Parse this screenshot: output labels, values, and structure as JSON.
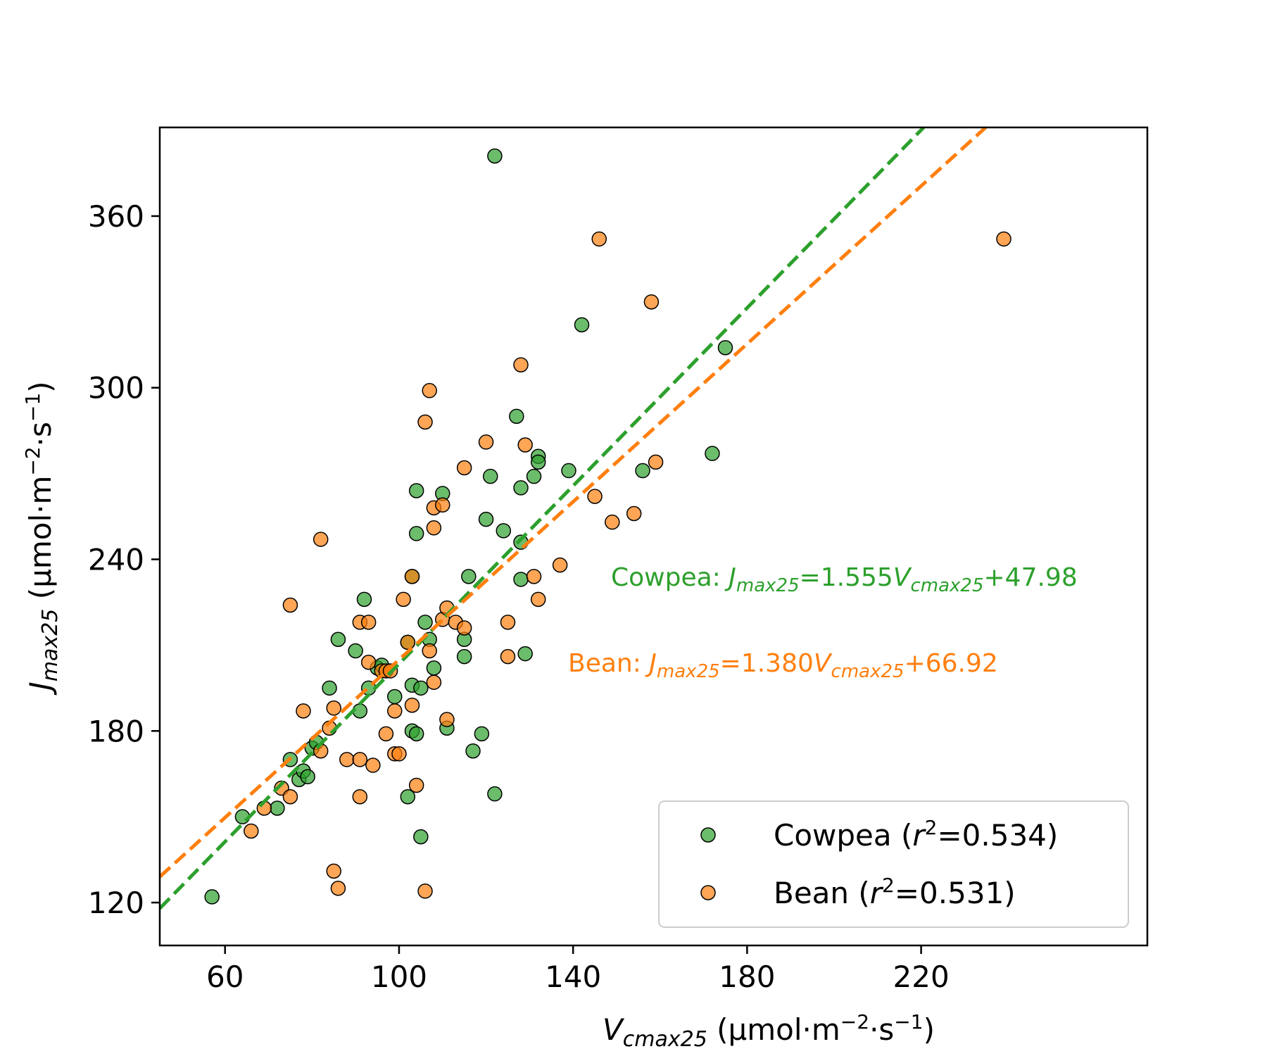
{
  "colors": {
    "cowpea": "#2ca02c",
    "bean": "#ff7f0e"
  },
  "chart_data": {
    "type": "scatter",
    "xlim": [
      45,
      272
    ],
    "ylim": [
      105,
      391
    ],
    "xticks": [
      60,
      100,
      140,
      180,
      220
    ],
    "yticks": [
      120,
      180,
      240,
      300,
      360
    ],
    "xlabel": {
      "main": "V",
      "sub": "cmax25",
      "rest": " (μmol·m",
      "sup1": "−2",
      "mid": "·s",
      "sup2": "−1",
      "end": ")"
    },
    "ylabel": {
      "main": "J",
      "sub": "max25",
      "rest": " (μmol·m",
      "sup1": "−2",
      "mid": "·s",
      "sup2": "−1",
      "end": ")"
    },
    "legend_position": "lower-right",
    "series": [
      {
        "name": "Cowpea",
        "legend": {
          "pre": "Cowpea (",
          "r": "r",
          "sup": "2",
          "post": "=0.534)"
        },
        "equation": {
          "name": "Cowpea: ",
          "J": "J",
          "jsub": "max25",
          "mid": "=1.555",
          "V": "V",
          "vsub": "cmax25",
          "end": "+47.98"
        },
        "fit": {
          "slope": 1.555,
          "intercept": 47.98
        },
        "points": [
          [
            57,
            122
          ],
          [
            64,
            150
          ],
          [
            72,
            153
          ],
          [
            75,
            170
          ],
          [
            77,
            163
          ],
          [
            78,
            166
          ],
          [
            79,
            164
          ],
          [
            80,
            174
          ],
          [
            81,
            176
          ],
          [
            84,
            195
          ],
          [
            86,
            212
          ],
          [
            90,
            208
          ],
          [
            91,
            187
          ],
          [
            92,
            226
          ],
          [
            93,
            195
          ],
          [
            95,
            202
          ],
          [
            96,
            203
          ],
          [
            99,
            192
          ],
          [
            102,
            211
          ],
          [
            102,
            157
          ],
          [
            103,
            180
          ],
          [
            103,
            196
          ],
          [
            103,
            234
          ],
          [
            104,
            179
          ],
          [
            104,
            249
          ],
          [
            104,
            264
          ],
          [
            105,
            143
          ],
          [
            105,
            195
          ],
          [
            106,
            218
          ],
          [
            107,
            212
          ],
          [
            108,
            202
          ],
          [
            110,
            263
          ],
          [
            111,
            181
          ],
          [
            115,
            206
          ],
          [
            115,
            212
          ],
          [
            116,
            234
          ],
          [
            117,
            173
          ],
          [
            119,
            179
          ],
          [
            120,
            254
          ],
          [
            121,
            269
          ],
          [
            122,
            158
          ],
          [
            122,
            381
          ],
          [
            124,
            250
          ],
          [
            127,
            290
          ],
          [
            128,
            265
          ],
          [
            128,
            233
          ],
          [
            128,
            246
          ],
          [
            129,
            207
          ],
          [
            131,
            269
          ],
          [
            132,
            276
          ],
          [
            132,
            274
          ],
          [
            139,
            271
          ],
          [
            142,
            322
          ],
          [
            156,
            271
          ],
          [
            172,
            277
          ],
          [
            175,
            314
          ]
        ]
      },
      {
        "name": "Bean",
        "legend": {
          "pre": "Bean (",
          "r": "r",
          "sup": "2",
          "post": "=0.531)"
        },
        "equation": {
          "name": "Bean: ",
          "J": "J",
          "jsub": "max25",
          "mid": "=1.380",
          "V": "V",
          "vsub": "cmax25",
          "end": "+66.92"
        },
        "fit": {
          "slope": 1.38,
          "intercept": 66.92
        },
        "points": [
          [
            66,
            145
          ],
          [
            69,
            153
          ],
          [
            73,
            160
          ],
          [
            75,
            157
          ],
          [
            75,
            224
          ],
          [
            78,
            187
          ],
          [
            82,
            173
          ],
          [
            82,
            247
          ],
          [
            84,
            181
          ],
          [
            85,
            131
          ],
          [
            85,
            188
          ],
          [
            86,
            125
          ],
          [
            88,
            170
          ],
          [
            91,
            170
          ],
          [
            91,
            157
          ],
          [
            91,
            218
          ],
          [
            93,
            204
          ],
          [
            93,
            218
          ],
          [
            94,
            168
          ],
          [
            96,
            201
          ],
          [
            97,
            201
          ],
          [
            97,
            179
          ],
          [
            98,
            201
          ],
          [
            99,
            172
          ],
          [
            99,
            187
          ],
          [
            100,
            172
          ],
          [
            101,
            226
          ],
          [
            102,
            211
          ],
          [
            103,
            234
          ],
          [
            103,
            189
          ],
          [
            104,
            161
          ],
          [
            106,
            124
          ],
          [
            106,
            288
          ],
          [
            107,
            299
          ],
          [
            107,
            208
          ],
          [
            108,
            197
          ],
          [
            108,
            251
          ],
          [
            108,
            258
          ],
          [
            110,
            219
          ],
          [
            110,
            259
          ],
          [
            111,
            184
          ],
          [
            111,
            223
          ],
          [
            113,
            218
          ],
          [
            115,
            216
          ],
          [
            115,
            272
          ],
          [
            120,
            281
          ],
          [
            125,
            206
          ],
          [
            125,
            218
          ],
          [
            128,
            308
          ],
          [
            129,
            280
          ],
          [
            131,
            234
          ],
          [
            132,
            226
          ],
          [
            137,
            238
          ],
          [
            145,
            262
          ],
          [
            146,
            352
          ],
          [
            149,
            253
          ],
          [
            154,
            256
          ],
          [
            158,
            330
          ],
          [
            159,
            274
          ],
          [
            239,
            352
          ]
        ]
      }
    ]
  }
}
